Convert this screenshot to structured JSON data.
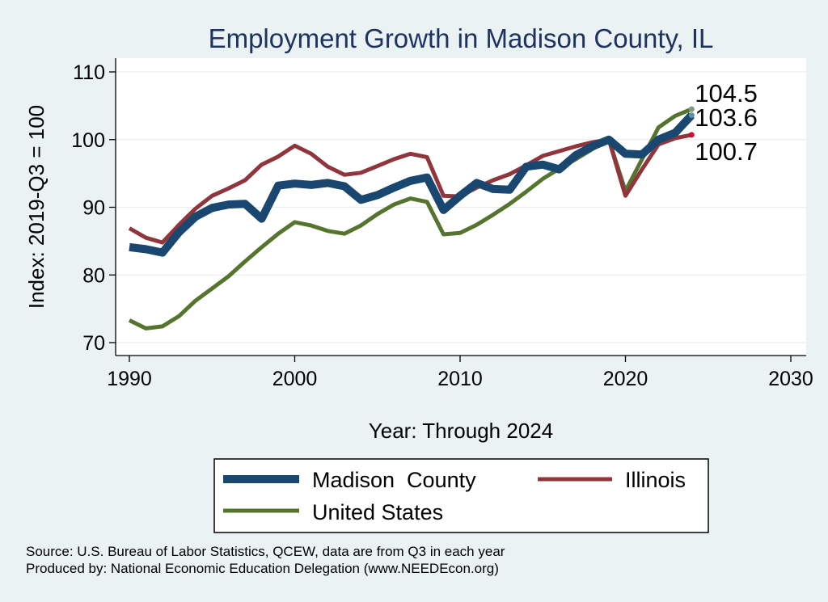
{
  "chart_data": {
    "type": "line",
    "title": "Employment Growth in Madison County, IL",
    "xlabel": "Year: Through 2024",
    "ylabel": "Index: 2019-Q3 = 100",
    "xlim": [
      1990,
      2030
    ],
    "ylim": [
      69,
      112
    ],
    "xticks": [
      1990,
      2000,
      2010,
      2020,
      2030
    ],
    "yticks": [
      70,
      80,
      90,
      100,
      110
    ],
    "grid": true,
    "x": [
      1990,
      1991,
      1992,
      1993,
      1994,
      1995,
      1996,
      1997,
      1998,
      1999,
      2000,
      2001,
      2002,
      2003,
      2004,
      2005,
      2006,
      2007,
      2008,
      2009,
      2010,
      2011,
      2012,
      2013,
      2014,
      2015,
      2016,
      2017,
      2018,
      2019,
      2020,
      2021,
      2022,
      2023,
      2024
    ],
    "series": [
      {
        "name": "Madison  County",
        "color": "#1a476f",
        "values": [
          84.1,
          83.8,
          83.3,
          86.3,
          88.6,
          89.9,
          90.4,
          90.5,
          88.3,
          93.2,
          93.5,
          93.3,
          93.6,
          93.1,
          91.1,
          91.8,
          92.9,
          93.9,
          94.4,
          89.6,
          91.7,
          93.6,
          92.7,
          92.6,
          96.0,
          96.3,
          95.6,
          97.7,
          99.0,
          100.0,
          97.9,
          97.8,
          100.0,
          101.0,
          103.6
        ]
      },
      {
        "name": "Illinois",
        "color": "#90353b",
        "values": [
          86.9,
          85.5,
          84.8,
          87.4,
          89.8,
          91.7,
          92.8,
          94.0,
          96.3,
          97.5,
          99.1,
          97.9,
          96.0,
          94.8,
          95.1,
          96.1,
          97.1,
          97.9,
          97.4,
          91.7,
          91.6,
          92.9,
          94.0,
          94.9,
          96.2,
          97.6,
          98.3,
          99.0,
          99.6,
          100.0,
          91.7,
          95.6,
          99.3,
          100.2,
          100.7
        ]
      },
      {
        "name": "United States",
        "color": "#55752f",
        "values": [
          73.3,
          72.1,
          72.4,
          73.9,
          76.2,
          78.0,
          79.8,
          82.0,
          84.1,
          86.1,
          87.8,
          87.3,
          86.5,
          86.1,
          87.3,
          89.0,
          90.4,
          91.3,
          90.8,
          86.0,
          86.2,
          87.4,
          88.9,
          90.5,
          92.3,
          94.2,
          95.7,
          97.1,
          98.6,
          100.0,
          92.4,
          97.1,
          101.8,
          103.5,
          104.5
        ]
      }
    ],
    "end_labels": [
      "104.5",
      "103.6",
      "100.7"
    ],
    "legend_position": "bottom"
  },
  "source_note": "Source: U.S. Bureau of Labor Statistics, QCEW, data are from Q3 in each year",
  "producer_note": "Produced by: National Economic Education Delegation (www.NEEDEcon.org)"
}
